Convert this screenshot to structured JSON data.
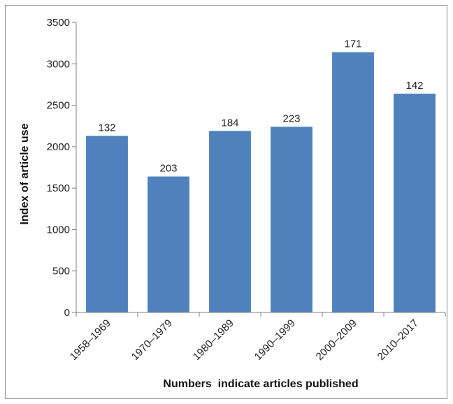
{
  "chart_data": {
    "type": "bar",
    "categories": [
      "1958–1969",
      "1970–1979",
      "1980–1989",
      "1990–1999",
      "2000–2009",
      "2010–2017"
    ],
    "values": [
      2130,
      1640,
      2190,
      2240,
      3140,
      2640
    ],
    "data_labels": [
      "132",
      "203",
      "184",
      "223",
      "171",
      "142"
    ],
    "title": "",
    "xlabel": "Numbers  indicate articles published",
    "ylabel": "Index of article use",
    "ylim": [
      0,
      3500
    ],
    "yticks": [
      0,
      500,
      1000,
      1500,
      2000,
      2500,
      3000,
      3500
    ],
    "grid": false,
    "bar_color": "#4f81bd"
  }
}
